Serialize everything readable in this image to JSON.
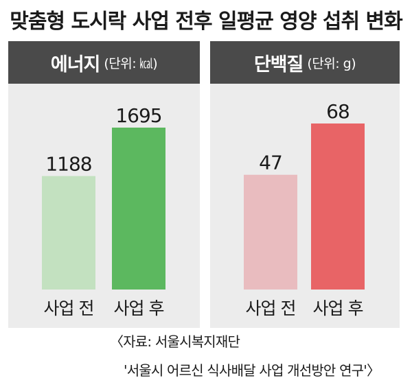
{
  "title": "맞춤형 도시락 사업 전후 일평균 영양 섭취 변화",
  "source": {
    "line1": "〈자료: 서울시복지재단",
    "line2": "'서울시 어르신 식사배달 사업 개선방안 연구'〉"
  },
  "chart_data": [
    {
      "type": "bar",
      "title": "에너지",
      "unit": "(단위: ㎉)",
      "categories": [
        "사업 전",
        "사업 후"
      ],
      "values": [
        1188,
        1695
      ],
      "colors": [
        "#c3e1c0",
        "#5cb85f"
      ]
    },
    {
      "type": "bar",
      "title": "단백질",
      "unit": "(단위: g)",
      "categories": [
        "사업 전",
        "사업 후"
      ],
      "values": [
        47,
        68
      ],
      "colors": [
        "#e9bcbf",
        "#e86466"
      ]
    }
  ]
}
